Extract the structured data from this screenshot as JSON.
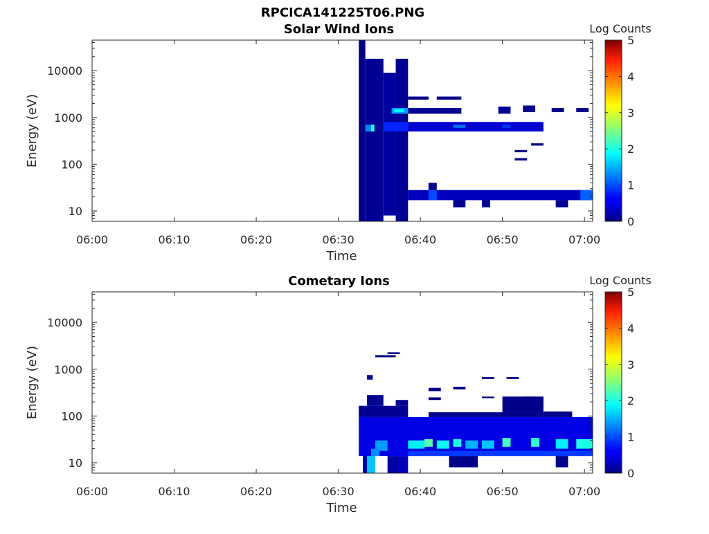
{
  "figure_title": "RPCICA141225T06.PNG",
  "chart_data": [
    {
      "type": "heatmap",
      "title": "Solar Wind Ions",
      "xlabel": "Time",
      "ylabel": "Energy (eV)",
      "x_ticks": [
        "06:00",
        "06:10",
        "06:20",
        "06:30",
        "06:40",
        "06:50",
        "07:00"
      ],
      "x_range_min": [
        0,
        61
      ],
      "y_scale": "log",
      "y_ticks": [
        10,
        100,
        1000,
        10000
      ],
      "y_ticks_text": [
        "10",
        "100",
        "1000",
        "10000"
      ],
      "ylim": [
        6,
        45000
      ],
      "colorbar_label": "Log Counts",
      "colorbar_ticks": [
        "0",
        "1",
        "2",
        "3",
        "4",
        "5"
      ],
      "clim": [
        0,
        5
      ],
      "colormap": "jet",
      "cells": [
        {
          "t": [
            32.5,
            33.3
          ],
          "e": [
            6,
            45000
          ],
          "v": 0.05
        },
        {
          "t": [
            33.3,
            35.5
          ],
          "e": [
            6,
            18000
          ],
          "v": 0.1
        },
        {
          "t": [
            35.5,
            37.0
          ],
          "e": [
            8,
            9000
          ],
          "v": 0.15
        },
        {
          "t": [
            37.0,
            38.5
          ],
          "e": [
            6,
            18000
          ],
          "v": 0.1
        },
        {
          "t": [
            33.3,
            34.2
          ],
          "e": [
            500,
            700
          ],
          "v": 1.3
        },
        {
          "t": [
            36.5,
            38.5
          ],
          "e": [
            1200,
            1600
          ],
          "v": 1.4
        },
        {
          "t": [
            35.5,
            38.5
          ],
          "e": [
            500,
            800
          ],
          "v": 0.8
        },
        {
          "t": [
            38.5,
            55.0
          ],
          "e": [
            500,
            800
          ],
          "v": 0.4
        },
        {
          "t": [
            38.5,
            45.0
          ],
          "e": [
            1200,
            1600
          ],
          "v": 0.1
        },
        {
          "t": [
            38.5,
            61.0
          ],
          "e": [
            17,
            28
          ],
          "v": 0.3
        },
        {
          "t": [
            41.0,
            42.0
          ],
          "e": [
            28,
            40
          ],
          "v": 0.1
        },
        {
          "t": [
            44.0,
            45.5
          ],
          "e": [
            12,
            17
          ],
          "v": 0.1
        },
        {
          "t": [
            47.5,
            48.5
          ],
          "e": [
            12,
            17
          ],
          "v": 0.1
        },
        {
          "t": [
            56.5,
            58.0
          ],
          "e": [
            12,
            17
          ],
          "v": 0.1
        },
        {
          "t": [
            38.5,
            41.0
          ],
          "e": [
            2400,
            2800
          ],
          "v": 0.05
        },
        {
          "t": [
            42.0,
            45.0
          ],
          "e": [
            2400,
            2800
          ],
          "v": 0.05
        },
        {
          "t": [
            49.5,
            51.0
          ],
          "e": [
            1200,
            1700
          ],
          "v": 0.1
        },
        {
          "t": [
            52.5,
            54.0
          ],
          "e": [
            1300,
            1800
          ],
          "v": 0.1
        },
        {
          "t": [
            56.0,
            57.5
          ],
          "e": [
            1300,
            1600
          ],
          "v": 0.05
        },
        {
          "t": [
            59.0,
            60.5
          ],
          "e": [
            1300,
            1600
          ],
          "v": 0.05
        },
        {
          "t": [
            51.5,
            53.0
          ],
          "e": [
            180,
            200
          ],
          "v": 0.05
        },
        {
          "t": [
            51.5,
            53.0
          ],
          "e": [
            120,
            135
          ],
          "v": 0.05
        },
        {
          "t": [
            53.5,
            55.0
          ],
          "e": [
            250,
            280
          ],
          "v": 0.05
        }
      ],
      "bright_cells": [
        {
          "t": [
            34.0,
            34.4
          ],
          "e": [
            500,
            700
          ],
          "v": 2.0
        },
        {
          "t": [
            36.8,
            38.0
          ],
          "e": [
            1300,
            1500
          ],
          "v": 1.9
        },
        {
          "t": [
            44.0,
            45.5
          ],
          "e": [
            600,
            700
          ],
          "v": 1.2
        },
        {
          "t": [
            41.0,
            42.0
          ],
          "e": [
            17,
            28
          ],
          "v": 1.0
        },
        {
          "t": [
            50.0,
            51.0
          ],
          "e": [
            600,
            700
          ],
          "v": 0.9
        },
        {
          "t": [
            59.5,
            61.0
          ],
          "e": [
            17,
            28
          ],
          "v": 1.1
        }
      ]
    },
    {
      "type": "heatmap",
      "title": "Cometary Ions",
      "xlabel": "Time",
      "ylabel": "Energy (eV)",
      "x_ticks": [
        "06:00",
        "06:10",
        "06:20",
        "06:30",
        "06:40",
        "06:50",
        "07:00"
      ],
      "x_range_min": [
        0,
        61
      ],
      "y_scale": "log",
      "y_ticks": [
        10,
        100,
        1000,
        10000
      ],
      "y_ticks_text": [
        "10",
        "100",
        "1000",
        "10000"
      ],
      "ylim": [
        6,
        45000
      ],
      "colorbar_label": "Log Counts",
      "colorbar_ticks": [
        "0",
        "1",
        "2",
        "3",
        "4",
        "5"
      ],
      "clim": [
        0,
        5
      ],
      "colormap": "jet",
      "cells": [
        {
          "t": [
            32.5,
            61.0
          ],
          "e": [
            14,
            95
          ],
          "v": 0.5
        },
        {
          "t": [
            32.5,
            38.5
          ],
          "e": [
            95,
            165
          ],
          "v": 0.1
        },
        {
          "t": [
            33.5,
            35.5
          ],
          "e": [
            165,
            280
          ],
          "v": 0.1
        },
        {
          "t": [
            37.0,
            38.5
          ],
          "e": [
            165,
            220
          ],
          "v": 0.1
        },
        {
          "t": [
            41.0,
            55.0
          ],
          "e": [
            95,
            120
          ],
          "v": 0.05
        },
        {
          "t": [
            50.0,
            55.0
          ],
          "e": [
            120,
            260
          ],
          "v": 0.05
        },
        {
          "t": [
            33.0,
            34.0
          ],
          "e": [
            6,
            14
          ],
          "v": 0.2
        },
        {
          "t": [
            33.5,
            34.5
          ],
          "e": [
            6,
            14
          ],
          "v": 1.6
        },
        {
          "t": [
            36.0,
            37.5
          ],
          "e": [
            6,
            14
          ],
          "v": 0.2
        },
        {
          "t": [
            37.5,
            38.5
          ],
          "e": [
            6,
            14
          ],
          "v": 0.3
        },
        {
          "t": [
            43.5,
            47.0
          ],
          "e": [
            8,
            14
          ],
          "v": 0.05
        },
        {
          "t": [
            56.5,
            58.0
          ],
          "e": [
            8,
            14
          ],
          "v": 0.05
        },
        {
          "t": [
            33.5,
            34.2
          ],
          "e": [
            600,
            750
          ],
          "v": 0.1
        },
        {
          "t": [
            34.5,
            37.0
          ],
          "e": [
            1800,
            2000
          ],
          "v": 0.05
        },
        {
          "t": [
            36.0,
            37.5
          ],
          "e": [
            2100,
            2300
          ],
          "v": 0.05
        },
        {
          "t": [
            41.0,
            42.5
          ],
          "e": [
            340,
            400
          ],
          "v": 0.05
        },
        {
          "t": [
            44.0,
            45.5
          ],
          "e": [
            370,
            420
          ],
          "v": 0.05
        },
        {
          "t": [
            41.0,
            42.5
          ],
          "e": [
            220,
            250
          ],
          "v": 0.05
        },
        {
          "t": [
            47.5,
            49.0
          ],
          "e": [
            620,
            680
          ],
          "v": 0.05
        },
        {
          "t": [
            50.5,
            52.0
          ],
          "e": [
            620,
            680
          ],
          "v": 0.05
        },
        {
          "t": [
            47.5,
            49.0
          ],
          "e": [
            240,
            260
          ],
          "v": 0.05
        },
        {
          "t": [
            52.5,
            54.0
          ],
          "e": [
            240,
            260
          ],
          "v": 0.05
        },
        {
          "t": [
            55.0,
            58.5
          ],
          "e": [
            95,
            125
          ],
          "v": 0.05
        }
      ],
      "bright_cells": [
        {
          "t": [
            34.5,
            36.0
          ],
          "e": [
            18,
            30
          ],
          "v": 1.4
        },
        {
          "t": [
            38.5,
            40.5
          ],
          "e": [
            20,
            30
          ],
          "v": 1.8
        },
        {
          "t": [
            40.5,
            41.5
          ],
          "e": [
            22,
            32
          ],
          "v": 2.3
        },
        {
          "t": [
            42.0,
            43.5
          ],
          "e": [
            20,
            30
          ],
          "v": 1.9
        },
        {
          "t": [
            44.0,
            45.0
          ],
          "e": [
            22,
            32
          ],
          "v": 2.0
        },
        {
          "t": [
            45.5,
            47.0
          ],
          "e": [
            20,
            30
          ],
          "v": 1.5
        },
        {
          "t": [
            47.5,
            49.0
          ],
          "e": [
            20,
            30
          ],
          "v": 1.6
        },
        {
          "t": [
            50.0,
            51.0
          ],
          "e": [
            22,
            34
          ],
          "v": 2.2
        },
        {
          "t": [
            53.5,
            54.5
          ],
          "e": [
            22,
            34
          ],
          "v": 2.1
        },
        {
          "t": [
            56.5,
            58.0
          ],
          "e": [
            20,
            32
          ],
          "v": 1.8
        },
        {
          "t": [
            59.0,
            61.0
          ],
          "e": [
            20,
            32
          ],
          "v": 2.0
        },
        {
          "t": [
            34.0,
            35.0
          ],
          "e": [
            14,
            20
          ],
          "v": 1.3
        },
        {
          "t": [
            38.5,
            61.0
          ],
          "e": [
            14,
            18
          ],
          "v": 0.9
        }
      ]
    }
  ]
}
